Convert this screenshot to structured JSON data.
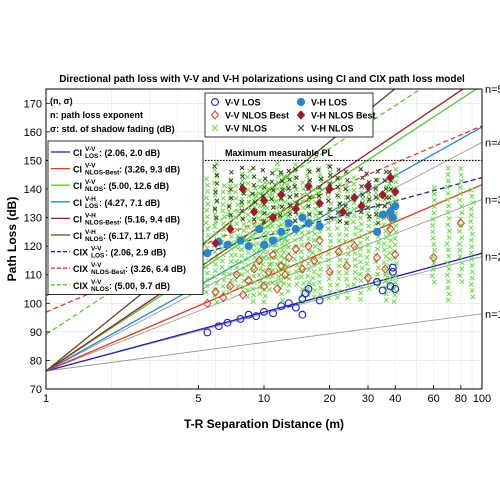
{
  "chart_data": {
    "type": "scatter",
    "title": "Directional path loss with V-V and V-H polarizations using CI and CIX path loss model",
    "xlabel": "T-R Separation Distance (m)",
    "ylabel": "Path Loss (dB)",
    "xscale": "log",
    "xlim": [
      1,
      100
    ],
    "ylim": [
      70,
      175
    ],
    "grid": true,
    "x_ticks": [
      1,
      5,
      10,
      20,
      30,
      40,
      60,
      80,
      100
    ],
    "y_ticks": [
      70,
      80,
      90,
      100,
      110,
      120,
      130,
      140,
      150,
      160,
      170
    ],
    "fspl_1m": 76.3,
    "annotations": {
      "header": "(n, σ)",
      "ple": "n: path loss exponent",
      "sigma": "σ: std. of shadow fading (dB)",
      "max_pl_label": "Maximum measurable PL",
      "max_pl_value": 150
    },
    "reference_lines": [
      {
        "label": "n=1",
        "n": 1,
        "color": "#9a9a9a"
      },
      {
        "label": "n=2",
        "n": 2,
        "color": "#9a9a9a"
      },
      {
        "label": "n=3",
        "n": 3,
        "color": "#9a9a9a"
      },
      {
        "label": "n=4",
        "n": 4,
        "color": "#9a9a9a"
      },
      {
        "label": "n=5",
        "n": 5,
        "color": "#9a9a9a"
      }
    ],
    "model_lines": [
      {
        "main": "CI",
        "sup": "V-V",
        "sub": "LOS",
        "value": ": (2.06, 2.0 dB)",
        "n": 2.06,
        "color": "#1f1fa8",
        "dash": false
      },
      {
        "main": "CI",
        "sup": "V-V",
        "sub": "NLOS-Best",
        "value": ": (3.26, 9.3 dB)",
        "n": 3.26,
        "color": "#e03a2a",
        "dash": false
      },
      {
        "main": "CI",
        "sup": "V-V",
        "sub": "NLOS",
        "value": ": (5.00, 12.6 dB)",
        "n": 5.0,
        "color": "#55cc33",
        "dash": false
      },
      {
        "main": "CI",
        "sup": "V-H",
        "sub": "LOS",
        "value": ": (4.27, 7.1 dB)",
        "n": 4.27,
        "color": "#2a86c8",
        "dash": false
      },
      {
        "main": "CI",
        "sup": "V-H",
        "sub": "NLOS-Best",
        "value": ": (5.16, 9.4 dB)",
        "n": 5.16,
        "color": "#9c1a2a",
        "dash": false
      },
      {
        "main": "CI",
        "sup": "V-H",
        "sub": "NLOS",
        "value": ": (6.17, 11.7 dB)",
        "n": 6.17,
        "color": "#5a4a1e",
        "dash": false
      },
      {
        "main": "CIX",
        "sup": "V-V",
        "sub": "LOS",
        "value": ": (2.06, 2.9 dB)",
        "n": 2.06,
        "color": "#1f1fa8",
        "dash": true,
        "offset": 26.5
      },
      {
        "main": "CIX",
        "sup": "V-V",
        "sub": "NLOS-Best",
        "value": ": (3.26, 6.4 dB)",
        "n": 3.26,
        "color": "#e03a2a",
        "dash": true,
        "offset": 20.6
      },
      {
        "main": "CIX",
        "sup": "V-V",
        "sub": "NLOS",
        "value": ": (5.00, 9.7 dB)",
        "n": 5.0,
        "color": "#55cc33",
        "dash": true,
        "offset": 12.8
      }
    ],
    "series": [
      {
        "name": "V-V LOS",
        "marker": "circle-open",
        "color": "#1f1fcc",
        "points": [
          [
            5.5,
            89.8
          ],
          [
            6.2,
            92
          ],
          [
            6.8,
            93.2
          ],
          [
            7.8,
            94.5
          ],
          [
            8.5,
            96
          ],
          [
            9.2,
            95.5
          ],
          [
            10,
            97
          ],
          [
            11,
            96.5
          ],
          [
            12,
            99
          ],
          [
            13,
            100
          ],
          [
            14,
            98.5
          ],
          [
            15,
            101.5
          ],
          [
            15.5,
            103.5
          ],
          [
            16,
            105
          ],
          [
            15,
            96
          ],
          [
            18,
            101
          ],
          [
            33,
            107.5
          ],
          [
            35,
            104.5
          ],
          [
            38,
            106
          ],
          [
            39,
            112.5
          ],
          [
            40,
            105
          ],
          [
            39,
            111
          ]
        ]
      },
      {
        "name": "V-V NLOS Best",
        "marker": "diamond-open",
        "color": "#e03a2a",
        "points": [
          [
            5.5,
            100
          ],
          [
            6,
            104
          ],
          [
            6.5,
            102
          ],
          [
            7,
            106
          ],
          [
            7.5,
            110
          ],
          [
            8,
            103
          ],
          [
            8.5,
            108
          ],
          [
            9,
            112
          ],
          [
            9.5,
            115
          ],
          [
            10,
            106
          ],
          [
            10.5,
            111
          ],
          [
            11,
            117
          ],
          [
            11.5,
            105
          ],
          [
            12,
            113
          ],
          [
            12.5,
            110
          ],
          [
            13,
            116
          ],
          [
            14,
            119
          ],
          [
            15,
            112
          ],
          [
            16,
            120
          ],
          [
            17,
            115
          ],
          [
            18,
            122
          ],
          [
            20,
            111
          ],
          [
            22,
            118
          ],
          [
            24,
            113
          ],
          [
            26,
            120
          ],
          [
            30,
            109
          ],
          [
            33,
            116
          ],
          [
            36,
            112
          ],
          [
            38,
            130
          ],
          [
            38,
            126
          ],
          [
            40,
            117
          ],
          [
            60,
            116
          ],
          [
            80,
            128
          ]
        ]
      },
      {
        "name": "V-H LOS",
        "marker": "circle-filled",
        "color": "#2a86c8",
        "points": [
          [
            5.5,
            117.5
          ],
          [
            6.2,
            121.5
          ],
          [
            6.8,
            120.5
          ],
          [
            7.8,
            122
          ],
          [
            8.5,
            120
          ],
          [
            9.5,
            126
          ],
          [
            10,
            120.5
          ],
          [
            11,
            122
          ],
          [
            12,
            125
          ],
          [
            13,
            128
          ],
          [
            14,
            126
          ],
          [
            15,
            130
          ],
          [
            16,
            128
          ],
          [
            18,
            127
          ],
          [
            33,
            125
          ],
          [
            35,
            131
          ],
          [
            38,
            132
          ],
          [
            39,
            130
          ],
          [
            40,
            134
          ]
        ]
      },
      {
        "name": "V-H NLOS Best",
        "marker": "diamond-filled",
        "color": "#9c1a2a",
        "points": [
          [
            6,
            121
          ],
          [
            7,
            126
          ],
          [
            8,
            140
          ],
          [
            9,
            132
          ],
          [
            10,
            136
          ],
          [
            11,
            130
          ],
          [
            12,
            138
          ],
          [
            14,
            133
          ],
          [
            16,
            141
          ],
          [
            18,
            135
          ],
          [
            20,
            140
          ],
          [
            23,
            132
          ],
          [
            26,
            137
          ],
          [
            28,
            134
          ],
          [
            30,
            141
          ],
          [
            35,
            138
          ],
          [
            38,
            144
          ],
          [
            40,
            139
          ]
        ]
      }
    ],
    "legend_text_entries": [
      "V-V NLOS",
      "V-H NLOS"
    ]
  }
}
